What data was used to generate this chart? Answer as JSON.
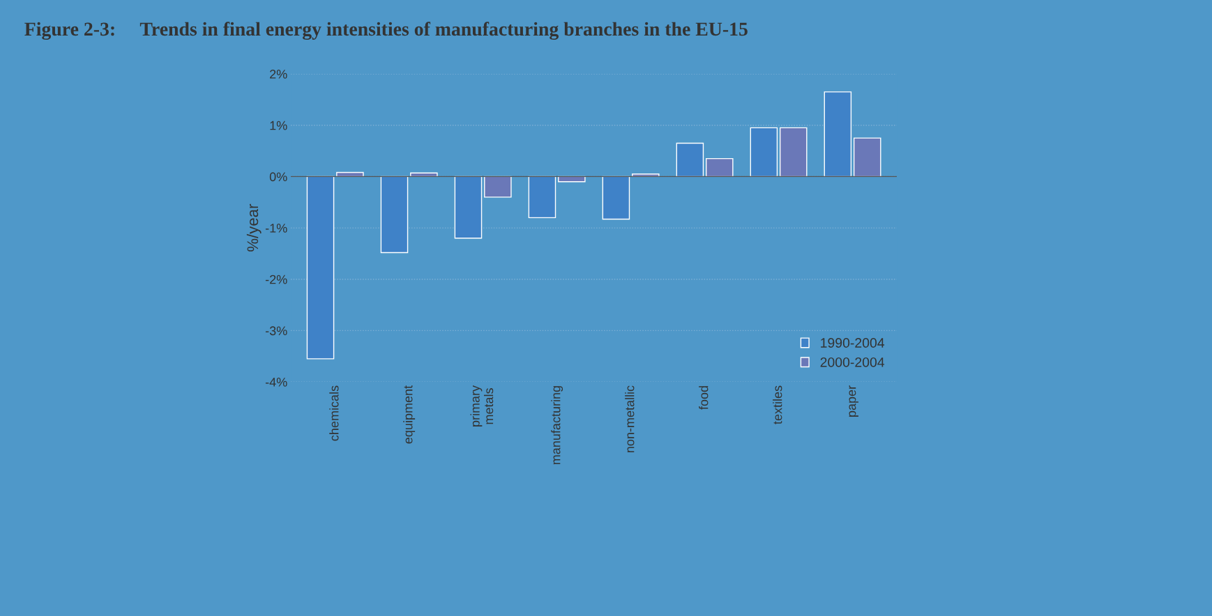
{
  "chart_data": {
    "type": "bar",
    "title": "Figure 2-3:     Trends in final energy intensities of manufacturing branches in the EU-15",
    "ylabel": "%/year",
    "categories": [
      "chemicals",
      "equipment",
      "primary\nmetals",
      "manufacturing",
      "non-metallic",
      "food",
      "textiles",
      "paper"
    ],
    "series": [
      {
        "name": "1990-2004",
        "color": "#3f82c8",
        "values": [
          -3.55,
          -1.48,
          -1.2,
          -0.8,
          -0.83,
          0.65,
          0.95,
          1.65
        ]
      },
      {
        "name": "2000-2004",
        "color": "#6a78b8",
        "values": [
          0.08,
          0.07,
          -0.4,
          -0.1,
          0.05,
          0.35,
          0.95,
          0.75
        ]
      }
    ],
    "ylim": [
      -4,
      2
    ],
    "yticks": [
      {
        "value": -4,
        "label": "-4%"
      },
      {
        "value": -3,
        "label": "-3%"
      },
      {
        "value": -2,
        "label": "-2%"
      },
      {
        "value": -1,
        "label": "-1%"
      },
      {
        "value": 0,
        "label": "0%"
      },
      {
        "value": 1,
        "label": "1%"
      },
      {
        "value": 2,
        "label": "2%"
      }
    ],
    "grid": "y",
    "legend": "bottom right"
  }
}
